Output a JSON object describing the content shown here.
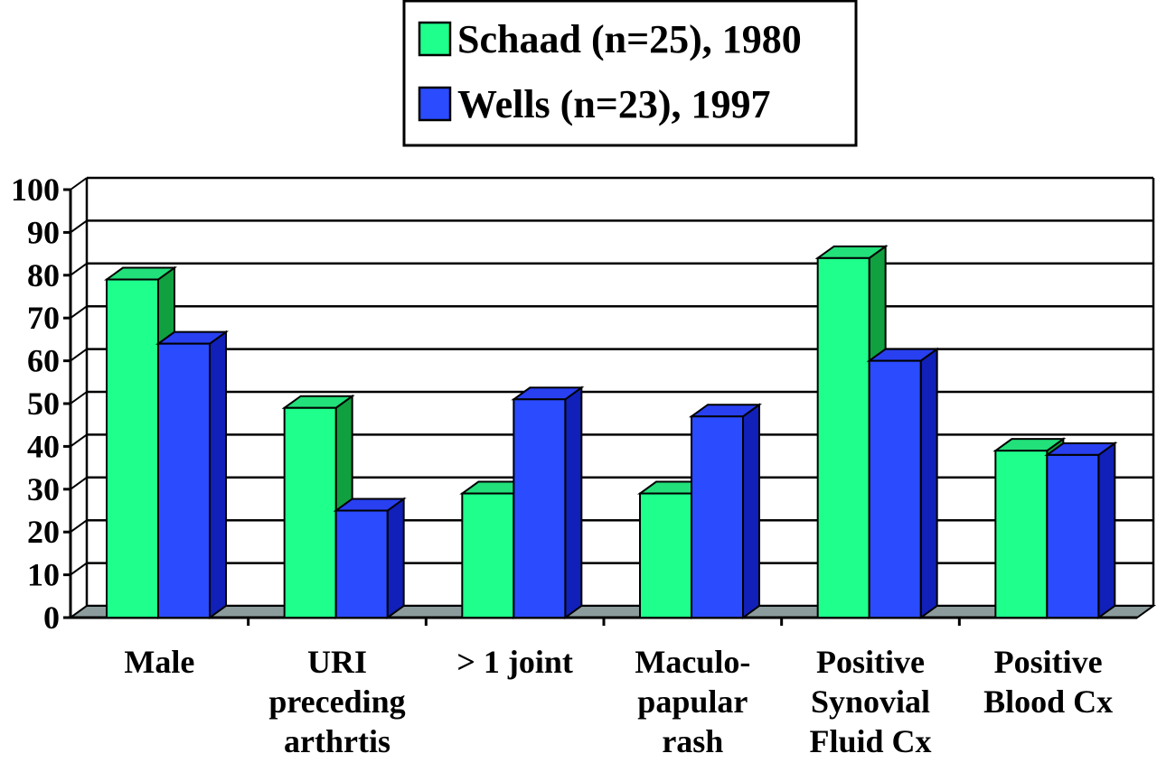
{
  "chart_data": {
    "type": "bar",
    "title": "",
    "xlabel": "",
    "ylabel": "",
    "ylim": [
      0,
      100
    ],
    "yticks": [
      0,
      10,
      20,
      30,
      40,
      50,
      60,
      70,
      80,
      90,
      100
    ],
    "grid": true,
    "legend_position": "top-center",
    "style": "3d-clustered",
    "categories": [
      [
        "Male"
      ],
      [
        "URI",
        "preceding",
        "arthrtis"
      ],
      [
        "> 1 joint"
      ],
      [
        "Maculo-",
        "papular",
        "rash"
      ],
      [
        "Positive",
        "Synovial",
        "Fluid Cx"
      ],
      [
        "Positive",
        "Blood Cx"
      ]
    ],
    "series": [
      {
        "name": "Schaad (n=25), 1980",
        "values": [
          79,
          49,
          29,
          29,
          84,
          39
        ],
        "color": "#1EFF8C",
        "side_color": "#10A040",
        "top_color": "#22E07A"
      },
      {
        "name": "Wells (n=23), 1997",
        "values": [
          64,
          25,
          51,
          47,
          60,
          38
        ],
        "color": "#2B4BFF",
        "side_color": "#1020B8",
        "top_color": "#2840F0"
      }
    ],
    "colors": {
      "floor": "#8C9C9C",
      "grid": "#000000",
      "background": "#FFFFFF"
    }
  }
}
